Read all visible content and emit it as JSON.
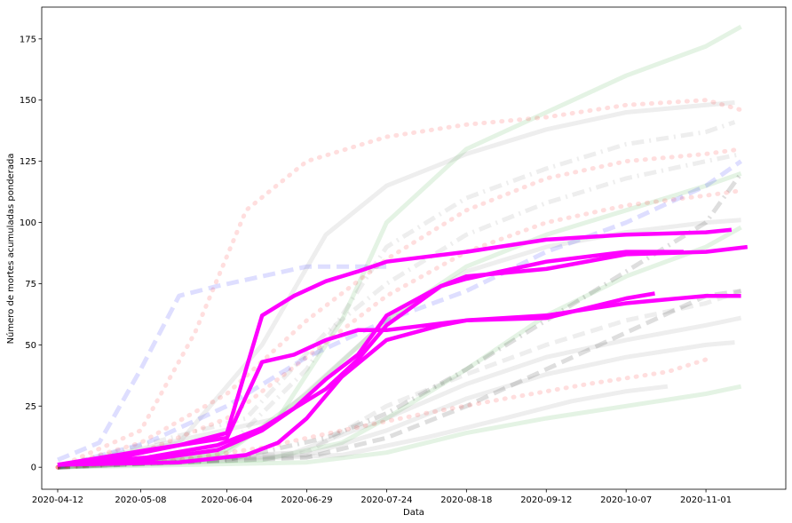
{
  "chart_data": {
    "type": "line",
    "title": "",
    "xlabel": "Data",
    "ylabel": "Número de mortes acumuladas ponderada",
    "x_ticks": [
      "2020-04-12",
      "2020-05-08",
      "2020-06-04",
      "2020-06-29",
      "2020-07-24",
      "2020-08-18",
      "2020-09-12",
      "2020-10-07",
      "2020-11-01"
    ],
    "y_ticks": [
      0,
      25,
      50,
      75,
      100,
      125,
      150,
      175
    ],
    "xlim": [
      "2020-04-07",
      "2020-11-26"
    ],
    "ylim": [
      -9,
      188
    ],
    "grid": false,
    "highlight_color": "#ff00ff",
    "background_colors": [
      "#2ca02c",
      "#ff0000",
      "#0000ff",
      "#7f7f7f",
      "#000000"
    ],
    "highlighted_series": [
      {
        "x": [
          "2020-04-12",
          "2020-05-01",
          "2020-05-20",
          "2020-06-04",
          "2020-06-15",
          "2020-06-25",
          "2020-07-05",
          "2020-07-15",
          "2020-07-24",
          "2020-08-18",
          "2020-09-12",
          "2020-10-07",
          "2020-11-01",
          "2020-11-09"
        ],
        "y": [
          1,
          4,
          9,
          14,
          62,
          70,
          76,
          80,
          84,
          88,
          93,
          95,
          96,
          97
        ]
      },
      {
        "x": [
          "2020-04-12",
          "2020-05-10",
          "2020-06-01",
          "2020-06-15",
          "2020-06-25",
          "2020-07-05",
          "2020-07-15",
          "2020-07-24",
          "2020-08-10",
          "2020-08-18",
          "2020-09-12",
          "2020-10-07",
          "2020-11-01",
          "2020-11-14"
        ],
        "y": [
          1,
          3,
          7,
          15,
          24,
          36,
          46,
          62,
          74,
          78,
          81,
          87,
          88,
          90
        ]
      },
      {
        "x": [
          "2020-04-12",
          "2020-05-10",
          "2020-06-01",
          "2020-06-15",
          "2020-06-25",
          "2020-07-05",
          "2020-07-15",
          "2020-07-24",
          "2020-08-10",
          "2020-08-18",
          "2020-09-12",
          "2020-10-07",
          "2020-10-25"
        ],
        "y": [
          1,
          4,
          9,
          16,
          24,
          32,
          44,
          58,
          74,
          77,
          84,
          88,
          88
        ]
      },
      {
        "x": [
          "2020-04-12",
          "2020-05-10",
          "2020-06-04",
          "2020-06-15",
          "2020-06-25",
          "2020-07-05",
          "2020-07-15",
          "2020-07-24",
          "2020-08-18",
          "2020-09-12",
          "2020-10-07",
          "2020-10-16"
        ],
        "y": [
          1,
          7,
          12,
          43,
          46,
          52,
          56,
          56,
          60,
          61,
          69,
          71
        ]
      },
      {
        "x": [
          "2020-04-12",
          "2020-05-20",
          "2020-06-10",
          "2020-06-20",
          "2020-06-29",
          "2020-07-10",
          "2020-07-24",
          "2020-08-10",
          "2020-08-18",
          "2020-09-12",
          "2020-10-07",
          "2020-11-01",
          "2020-11-12"
        ],
        "y": [
          1,
          2,
          5,
          10,
          20,
          37,
          52,
          58,
          60,
          62,
          67,
          70,
          70
        ]
      }
    ],
    "background_series": [
      {
        "color": "#2ca02c",
        "dash": "solid",
        "x": [
          "2020-04-12",
          "2020-06-01",
          "2020-06-20",
          "2020-07-10",
          "2020-07-24",
          "2020-08-18",
          "2020-09-12",
          "2020-10-07",
          "2020-11-01",
          "2020-11-12"
        ],
        "y": [
          0,
          5,
          20,
          60,
          100,
          130,
          145,
          160,
          172,
          180
        ]
      },
      {
        "color": "#2ca02c",
        "dash": "solid",
        "x": [
          "2020-04-12",
          "2020-06-15",
          "2020-07-10",
          "2020-07-24",
          "2020-08-18",
          "2020-09-12",
          "2020-10-07",
          "2020-11-01",
          "2020-11-12"
        ],
        "y": [
          0,
          3,
          10,
          20,
          40,
          62,
          78,
          90,
          98
        ]
      },
      {
        "color": "#2ca02c",
        "dash": "solid",
        "x": [
          "2020-04-12",
          "2020-06-29",
          "2020-07-24",
          "2020-08-18",
          "2020-09-12",
          "2020-10-07",
          "2020-11-01",
          "2020-11-12"
        ],
        "y": [
          0,
          2,
          6,
          14,
          20,
          25,
          30,
          33
        ]
      },
      {
        "color": "#2ca02c",
        "dash": "solid",
        "x": [
          "2020-04-12",
          "2020-06-04",
          "2020-06-29",
          "2020-07-24",
          "2020-08-18",
          "2020-09-12",
          "2020-10-07",
          "2020-11-01",
          "2020-11-12"
        ],
        "y": [
          0,
          6,
          30,
          60,
          82,
          95,
          105,
          115,
          120
        ]
      },
      {
        "color": "#7f7f7f",
        "dash": "solid",
        "x": [
          "2020-04-12",
          "2020-05-20",
          "2020-06-15",
          "2020-07-05",
          "2020-07-24",
          "2020-08-18",
          "2020-09-12",
          "2020-10-07",
          "2020-11-01",
          "2020-11-10"
        ],
        "y": [
          0,
          10,
          50,
          95,
          115,
          128,
          138,
          145,
          148,
          149
        ]
      },
      {
        "color": "#7f7f7f",
        "dash": "dashdot",
        "x": [
          "2020-04-12",
          "2020-06-04",
          "2020-06-29",
          "2020-07-24",
          "2020-08-18",
          "2020-09-12",
          "2020-10-07",
          "2020-11-01",
          "2020-11-10"
        ],
        "y": [
          0,
          8,
          40,
          90,
          110,
          122,
          132,
          137,
          141
        ]
      },
      {
        "color": "#7f7f7f",
        "dash": "dashdot",
        "x": [
          "2020-04-12",
          "2020-06-10",
          "2020-07-05",
          "2020-07-24",
          "2020-08-18",
          "2020-09-12",
          "2020-10-07",
          "2020-11-01",
          "2020-11-12"
        ],
        "y": [
          0,
          20,
          55,
          75,
          95,
          108,
          118,
          125,
          128
        ]
      },
      {
        "color": "#7f7f7f",
        "dash": "solid",
        "x": [
          "2020-04-12",
          "2020-06-20",
          "2020-07-24",
          "2020-08-18",
          "2020-09-12",
          "2020-10-07",
          "2020-11-01",
          "2020-11-12"
        ],
        "y": [
          0,
          20,
          60,
          80,
          90,
          96,
          100,
          101
        ]
      },
      {
        "color": "#7f7f7f",
        "dash": "dashed",
        "x": [
          "2020-04-12",
          "2020-06-29",
          "2020-07-24",
          "2020-08-18",
          "2020-09-12",
          "2020-10-07",
          "2020-11-01",
          "2020-11-12"
        ],
        "y": [
          0,
          6,
          25,
          38,
          50,
          60,
          67,
          72
        ]
      },
      {
        "color": "#7f7f7f",
        "dash": "solid",
        "x": [
          "2020-04-12",
          "2020-07-10",
          "2020-08-05",
          "2020-08-30",
          "2020-09-20",
          "2020-10-07",
          "2020-10-20"
        ],
        "y": [
          0,
          5,
          12,
          20,
          27,
          31,
          33
        ]
      },
      {
        "color": "#7f7f7f",
        "dash": "solid",
        "x": [
          "2020-04-12",
          "2020-06-29",
          "2020-07-24",
          "2020-08-18",
          "2020-09-12",
          "2020-10-07",
          "2020-11-01",
          "2020-11-10"
        ],
        "y": [
          0,
          5,
          15,
          28,
          38,
          45,
          50,
          51
        ]
      },
      {
        "color": "#7f7f7f",
        "dash": "solid",
        "x": [
          "2020-04-12",
          "2020-06-25",
          "2020-07-24",
          "2020-08-18",
          "2020-09-12",
          "2020-10-07",
          "2020-11-01",
          "2020-11-12"
        ],
        "y": [
          0,
          6,
          20,
          34,
          45,
          52,
          58,
          61
        ]
      },
      {
        "color": "#000000",
        "dash": "dashdot",
        "x": [
          "2020-04-12",
          "2020-06-04",
          "2020-07-05",
          "2020-07-24",
          "2020-08-18",
          "2020-09-12",
          "2020-10-07",
          "2020-11-01",
          "2020-11-12"
        ],
        "y": [
          0,
          3,
          12,
          22,
          40,
          60,
          80,
          100,
          120
        ]
      },
      {
        "color": "#000000",
        "dash": "dashed",
        "x": [
          "2020-04-12",
          "2020-06-29",
          "2020-07-24",
          "2020-08-18",
          "2020-09-12",
          "2020-10-07",
          "2020-11-01",
          "2020-11-12"
        ],
        "y": [
          0,
          4,
          12,
          25,
          40,
          55,
          70,
          72
        ]
      },
      {
        "color": "#ff0000",
        "dash": "dotted",
        "x": [
          "2020-04-12",
          "2020-05-08",
          "2020-05-25",
          "2020-06-10",
          "2020-06-29",
          "2020-07-24",
          "2020-08-18",
          "2020-09-12",
          "2020-10-07",
          "2020-11-01",
          "2020-11-12"
        ],
        "y": [
          0,
          15,
          55,
          105,
          125,
          135,
          140,
          143,
          148,
          150,
          146
        ]
      },
      {
        "color": "#ff0000",
        "dash": "dotted",
        "x": [
          "2020-04-12",
          "2020-05-08",
          "2020-06-04",
          "2020-06-29",
          "2020-07-24",
          "2020-08-18",
          "2020-09-12",
          "2020-10-07",
          "2020-11-01",
          "2020-11-12"
        ],
        "y": [
          0,
          10,
          30,
          60,
          85,
          105,
          118,
          125,
          128,
          130
        ]
      },
      {
        "color": "#ff0000",
        "dash": "dotted",
        "x": [
          "2020-04-12",
          "2020-05-08",
          "2020-06-04",
          "2020-06-29",
          "2020-07-24",
          "2020-08-18",
          "2020-09-12",
          "2020-10-07",
          "2020-11-01",
          "2020-11-12"
        ],
        "y": [
          0,
          6,
          20,
          45,
          70,
          88,
          100,
          107,
          111,
          113
        ]
      },
      {
        "color": "#ff0000",
        "dash": "dotted",
        "x": [
          "2020-04-12",
          "2020-05-20",
          "2020-06-15",
          "2020-07-10",
          "2020-08-05",
          "2020-08-30",
          "2020-09-25",
          "2020-10-20",
          "2020-11-01"
        ],
        "y": [
          0,
          3,
          8,
          15,
          22,
          28,
          34,
          39,
          44
        ]
      },
      {
        "color": "#0000ff",
        "dash": "dashed",
        "x": [
          "2020-04-12",
          "2020-04-25",
          "2020-05-08",
          "2020-05-20",
          "2020-06-01",
          "2020-06-29",
          "2020-07-24"
        ],
        "y": [
          3,
          10,
          40,
          70,
          74,
          82,
          82
        ]
      },
      {
        "color": "#0000ff",
        "dash": "dashed",
        "x": [
          "2020-04-12",
          "2020-05-10",
          "2020-06-04",
          "2020-06-29",
          "2020-07-24",
          "2020-08-18",
          "2020-09-12",
          "2020-10-07",
          "2020-11-01",
          "2020-11-12"
        ],
        "y": [
          0,
          10,
          25,
          45,
          60,
          72,
          88,
          100,
          115,
          125
        ]
      }
    ]
  }
}
